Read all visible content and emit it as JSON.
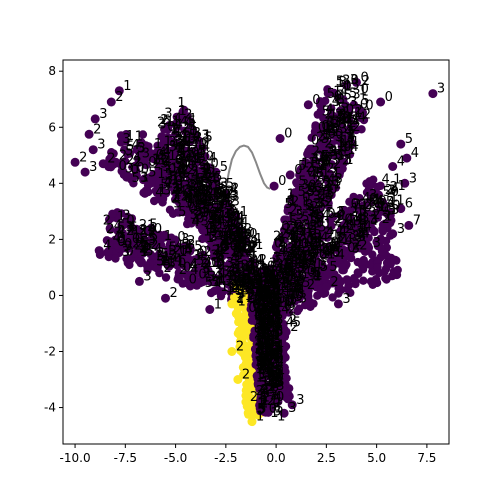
{
  "chart_data": {
    "type": "scatter",
    "title": "",
    "xlabel": "",
    "ylabel": "",
    "xlim": [
      -10.6,
      8.6
    ],
    "ylim": [
      -5.3,
      8.4
    ],
    "x_ticks": [
      "-10.0",
      "-7.5",
      "-5.0",
      "-2.5",
      "0.0",
      "2.5",
      "5.0",
      "7.5"
    ],
    "x_tick_values": [
      -10,
      -7.5,
      -5,
      -2.5,
      0,
      2.5,
      5,
      7.5
    ],
    "y_ticks": [
      "-4",
      "-2",
      "0",
      "2",
      "4",
      "6",
      "8"
    ],
    "y_tick_values": [
      -4,
      -2,
      0,
      2,
      4,
      6,
      8
    ],
    "grid": false,
    "colors": {
      "class_purple": "#440154",
      "class_yellow": "#fde725",
      "point_label": "#000000",
      "curve": "#888888"
    },
    "curve": {
      "x": [
        -2.5,
        -2.35,
        -2.2,
        -2.0,
        -1.8,
        -1.6,
        -1.4,
        -1.2,
        -1.0,
        -0.8,
        -0.6,
        -0.45,
        -0.3
      ],
      "y": [
        3.8,
        4.4,
        4.85,
        5.15,
        5.3,
        5.35,
        5.3,
        5.1,
        4.75,
        4.35,
        4.0,
        3.85,
        3.8
      ]
    },
    "labeled_points": [
      {
        "x": -7.8,
        "y": 7.3,
        "label": "1",
        "class": 0
      },
      {
        "x": -8.2,
        "y": 6.9,
        "label": "2",
        "class": 0
      },
      {
        "x": -9.0,
        "y": 6.3,
        "label": "3",
        "class": 0
      },
      {
        "x": -9.3,
        "y": 5.75,
        "label": "2",
        "class": 0
      },
      {
        "x": -9.1,
        "y": 5.2,
        "label": "3",
        "class": 0
      },
      {
        "x": -10.0,
        "y": 4.75,
        "label": "2",
        "class": 0
      },
      {
        "x": -9.5,
        "y": 4.4,
        "label": "3",
        "class": 0
      },
      {
        "x": -8.6,
        "y": 4.7,
        "label": "2",
        "class": 0
      },
      {
        "x": -3.0,
        "y": 4.4,
        "label": "5",
        "class": 0
      },
      {
        "x": -4.2,
        "y": 4.9,
        "label": "4",
        "class": 0
      },
      {
        "x": -2.5,
        "y": 3.6,
        "label": "4",
        "class": 0
      },
      {
        "x": -2.0,
        "y": 2.8,
        "label": "1",
        "class": 0
      },
      {
        "x": -1.8,
        "y": 2.0,
        "label": "2",
        "class": 0
      },
      {
        "x": -2.7,
        "y": 2.0,
        "label": "0",
        "class": 0
      },
      {
        "x": -8.8,
        "y": 1.6,
        "label": "4",
        "class": 0
      },
      {
        "x": -6.8,
        "y": 0.5,
        "label": "3",
        "class": 0
      },
      {
        "x": -5.5,
        "y": -0.1,
        "label": "2",
        "class": 0
      },
      {
        "x": -3.3,
        "y": -0.5,
        "label": "1",
        "class": 0
      },
      {
        "x": 3.5,
        "y": 7.5,
        "label": "0",
        "class": 0
      },
      {
        "x": 4.0,
        "y": 7.6,
        "label": "0",
        "class": 0
      },
      {
        "x": 5.2,
        "y": 6.9,
        "label": "0",
        "class": 0
      },
      {
        "x": 1.6,
        "y": 6.8,
        "label": "0",
        "class": 0
      },
      {
        "x": 7.8,
        "y": 7.2,
        "label": "3",
        "class": 0
      },
      {
        "x": 6.2,
        "y": 5.4,
        "label": "5",
        "class": 0
      },
      {
        "x": 6.5,
        "y": 4.9,
        "label": "4",
        "class": 0
      },
      {
        "x": 5.8,
        "y": 4.6,
        "label": "4",
        "class": 0
      },
      {
        "x": 6.4,
        "y": 4.0,
        "label": "3",
        "class": 0
      },
      {
        "x": 6.2,
        "y": 3.1,
        "label": "6",
        "class": 0
      },
      {
        "x": 6.6,
        "y": 2.5,
        "label": "7",
        "class": 0
      },
      {
        "x": 5.8,
        "y": 2.2,
        "label": "3",
        "class": 0
      },
      {
        "x": 4.6,
        "y": 1.7,
        "label": "3",
        "class": 0
      },
      {
        "x": 2.5,
        "y": 0.3,
        "label": "2",
        "class": 0
      },
      {
        "x": 3.1,
        "y": -0.3,
        "label": "3",
        "class": 0
      },
      {
        "x": -0.1,
        "y": 3.9,
        "label": "0",
        "class": 0
      },
      {
        "x": 0.7,
        "y": 4.3,
        "label": "0",
        "class": 0
      },
      {
        "x": 0.2,
        "y": 5.6,
        "label": "0",
        "class": 0
      },
      {
        "x": -2.0,
        "y": 0.4,
        "label": "2",
        "class": 1
      },
      {
        "x": -2.2,
        "y": -0.3,
        "label": "1",
        "class": 1
      },
      {
        "x": -2.2,
        "y": -2.0,
        "label": "2",
        "class": 1
      },
      {
        "x": -1.9,
        "y": -3.0,
        "label": "2",
        "class": 1
      },
      {
        "x": -1.5,
        "y": -3.8,
        "label": "2",
        "class": 1
      },
      {
        "x": -1.2,
        "y": -4.5,
        "label": "1",
        "class": 1
      },
      {
        "x": 0.5,
        "y": -1.3,
        "label": "2",
        "class": 0
      },
      {
        "x": 0.8,
        "y": -3.9,
        "label": "3",
        "class": 0
      },
      {
        "x": 0.4,
        "y": -4.2,
        "label": "3",
        "class": 0
      }
    ]
  }
}
